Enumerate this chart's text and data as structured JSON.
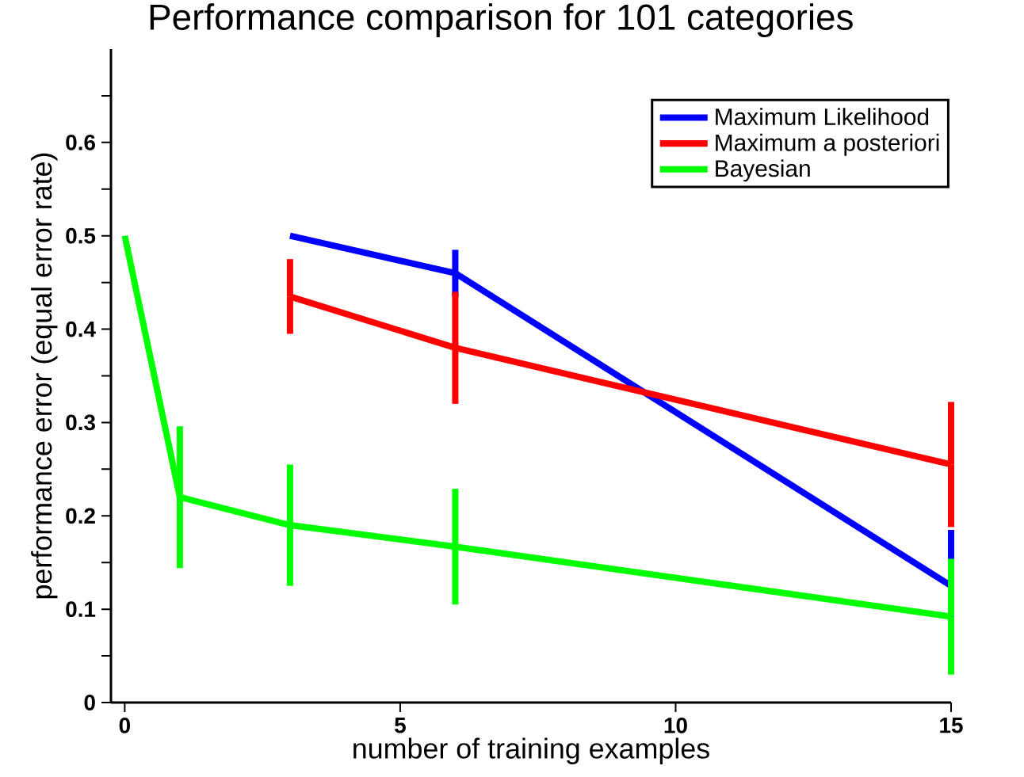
{
  "chart_data": {
    "type": "line",
    "title": "Performance comparison for 101 categories",
    "xlabel": "number of training examples",
    "ylabel": "performance error (equal error rate)",
    "xlim": [
      -0.25,
      15
    ],
    "xticks": [
      0,
      5,
      10,
      15
    ],
    "ylim": [
      0,
      0.7
    ],
    "yticks": [
      0,
      {
        "value": 0.05,
        "label": null
      },
      0.1,
      {
        "value": 0.15,
        "label": null
      },
      0.2,
      {
        "value": 0.25,
        "label": null
      },
      0.3,
      {
        "value": 0.35,
        "label": null
      },
      0.4,
      {
        "value": 0.45,
        "label": null
      },
      0.5,
      {
        "value": 0.55,
        "label": null
      },
      0.6,
      {
        "value": 0.65,
        "label": null
      }
    ],
    "legend": "top right",
    "series": [
      {
        "name": "Maximum Likelihood",
        "color": "#0000ff",
        "x": [
          3,
          6,
          15
        ],
        "values": [
          0.5,
          0.46,
          0.125
        ],
        "errors": [
          null,
          0.025,
          0.06
        ]
      },
      {
        "name": "Maximum a posteriori",
        "color": "#ff0000",
        "x": [
          3,
          6,
          15
        ],
        "values": [
          0.435,
          0.38,
          0.255
        ],
        "errors": [
          0.04,
          0.06,
          0.067
        ]
      },
      {
        "name": "Bayesian",
        "color": "#00ff00",
        "x": [
          0,
          1,
          3,
          6,
          15
        ],
        "values": [
          0.5,
          0.22,
          0.19,
          0.167,
          0.092
        ],
        "errors": [
          null,
          0.076,
          0.065,
          0.062,
          0.062
        ]
      }
    ]
  }
}
